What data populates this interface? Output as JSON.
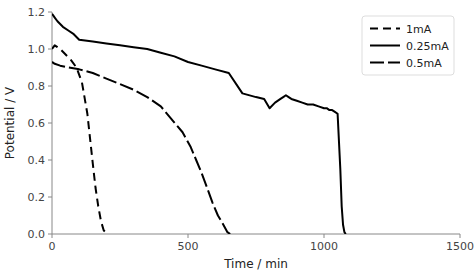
{
  "chart_data": {
    "type": "line",
    "xlabel": "Time / min",
    "ylabel": "Potential / V",
    "xlim": [
      0,
      1500
    ],
    "ylim": [
      0,
      1.2
    ],
    "xticks": [
      0,
      500,
      1000,
      1500
    ],
    "yticks": [
      {
        "value": 0,
        "label": "0.0"
      },
      0.2,
      0.4,
      0.6,
      0.8,
      {
        "value": 1.0,
        "label": "1.0"
      },
      1.2
    ],
    "legend": "upper-right",
    "grid": false,
    "series": [
      {
        "name": "1mA",
        "color": "#000000",
        "line_style": "dashed",
        "x": [
          0,
          5,
          10,
          20,
          30,
          50,
          70,
          90,
          110,
          130,
          150,
          160,
          170,
          180,
          190,
          200,
          205
        ],
        "values": [
          1.0,
          1.01,
          1.02,
          1.01,
          1.0,
          0.97,
          0.94,
          0.9,
          0.82,
          0.65,
          0.38,
          0.25,
          0.15,
          0.07,
          0.02,
          0.005,
          0.0
        ]
      },
      {
        "name": "0.25mA",
        "color": "#000000",
        "line_style": "solid",
        "x": [
          0,
          5,
          10,
          20,
          40,
          60,
          80,
          100,
          150,
          200,
          250,
          300,
          350,
          400,
          450,
          500,
          550,
          600,
          650,
          700,
          750,
          780,
          800,
          820,
          840,
          850,
          860,
          870,
          880,
          900,
          920,
          940,
          960,
          980,
          1000,
          1010,
          1020,
          1030,
          1040,
          1050,
          1060,
          1065,
          1070,
          1075,
          1080
        ],
        "values": [
          1.19,
          1.18,
          1.17,
          1.15,
          1.12,
          1.1,
          1.08,
          1.05,
          1.04,
          1.03,
          1.02,
          1.01,
          1.0,
          0.98,
          0.96,
          0.93,
          0.91,
          0.89,
          0.87,
          0.76,
          0.74,
          0.73,
          0.68,
          0.71,
          0.73,
          0.74,
          0.75,
          0.74,
          0.73,
          0.72,
          0.71,
          0.7,
          0.7,
          0.69,
          0.68,
          0.68,
          0.67,
          0.67,
          0.66,
          0.65,
          0.35,
          0.15,
          0.05,
          0.01,
          0.0
        ]
      },
      {
        "name": "0.5mA",
        "color": "#000000",
        "line_style": "long-dashed",
        "x": [
          0,
          10,
          30,
          60,
          100,
          150,
          200,
          250,
          300,
          350,
          400,
          440,
          480,
          510,
          530,
          550,
          570,
          590,
          610,
          630,
          645,
          655
        ],
        "values": [
          0.93,
          0.92,
          0.91,
          0.9,
          0.89,
          0.87,
          0.84,
          0.81,
          0.78,
          0.74,
          0.69,
          0.62,
          0.55,
          0.47,
          0.4,
          0.33,
          0.25,
          0.17,
          0.1,
          0.05,
          0.01,
          0.0
        ]
      }
    ]
  }
}
